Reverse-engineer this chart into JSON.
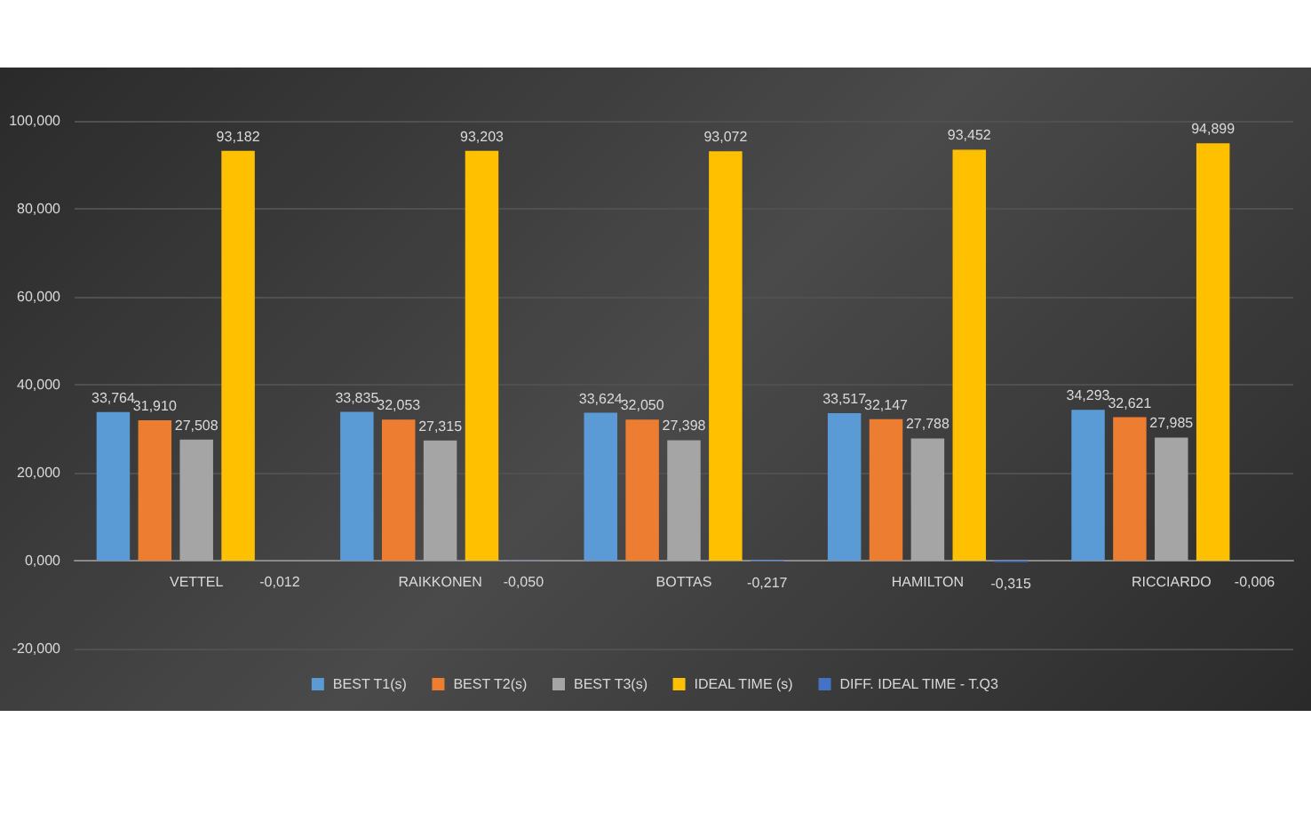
{
  "chart_data": {
    "type": "bar",
    "categories": [
      "VETTEL",
      "RAIKKONEN",
      "BOTTAS",
      "HAMILTON",
      "RICCIARDO"
    ],
    "series": [
      {
        "name": "BEST T1(s)",
        "color": "#5b9bd5",
        "values": [
          33.764,
          33.835,
          33.624,
          33.517,
          34.293
        ],
        "value_labels": [
          "33,764",
          "33,835",
          "33,624",
          "33,517",
          "34,293"
        ]
      },
      {
        "name": "BEST T2(s)",
        "color": "#ed7d31",
        "values": [
          31.91,
          32.053,
          32.05,
          32.147,
          32.621
        ],
        "value_labels": [
          "31,910",
          "32,053",
          "32,050",
          "32,147",
          "32,621"
        ]
      },
      {
        "name": "BEST T3(s)",
        "color": "#a5a5a5",
        "values": [
          27.508,
          27.315,
          27.398,
          27.788,
          27.985
        ],
        "value_labels": [
          "27,508",
          "27,315",
          "27,398",
          "27,788",
          "27,985"
        ]
      },
      {
        "name": "IDEAL TIME (s)",
        "color": "#ffc000",
        "values": [
          93.182,
          93.203,
          93.072,
          93.452,
          94.899
        ],
        "value_labels": [
          "93,182",
          "93,203",
          "93,072",
          "93,452",
          "94,899"
        ]
      },
      {
        "name": "DIFF. IDEAL TIME - T.Q3",
        "color": "#4472c4",
        "values": [
          -0.012,
          -0.05,
          -0.217,
          -0.315,
          -0.006
        ],
        "value_labels": [
          "-0,012",
          "-0,050",
          "-0,217",
          "-0,315",
          "-0,006"
        ]
      }
    ],
    "ylim": [
      -20,
      100
    ],
    "yticks": [
      {
        "value": -20,
        "label": "-20,000"
      },
      {
        "value": 0,
        "label": "0,000"
      },
      {
        "value": 20,
        "label": "20,000"
      },
      {
        "value": 40,
        "label": "40,000"
      },
      {
        "value": 60,
        "label": "60,000"
      },
      {
        "value": 80,
        "label": "80,000"
      },
      {
        "value": 100,
        "label": "100,000"
      }
    ],
    "grid": "y",
    "legend": "bottom"
  }
}
